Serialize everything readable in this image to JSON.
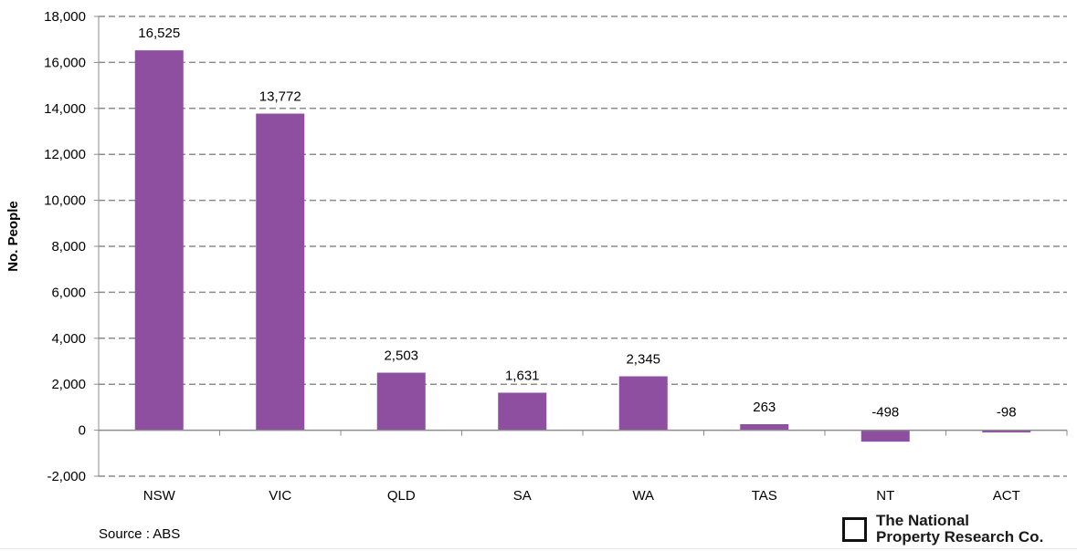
{
  "chart_data": {
    "type": "bar",
    "categories": [
      "NSW",
      "VIC",
      "QLD",
      "SA",
      "WA",
      "TAS",
      "NT",
      "ACT"
    ],
    "values": [
      16525,
      13772,
      2503,
      1631,
      2345,
      263,
      -498,
      -98
    ],
    "data_labels": [
      "16,525",
      "13,772",
      "2,503",
      "1,631",
      "2,345",
      "263",
      "-498",
      "-98"
    ],
    "ylabel": "No. People",
    "ylim": [
      -2000,
      18000
    ],
    "yticks": [
      -2000,
      0,
      2000,
      4000,
      6000,
      8000,
      10000,
      12000,
      14000,
      16000,
      18000
    ],
    "ytick_labels": [
      "-2,000",
      "0",
      "2,000",
      "4,000",
      "6,000",
      "8,000",
      "10,000",
      "12,000",
      "14,000",
      "16,000",
      "18,000"
    ],
    "grid": true,
    "bar_color": "#8E4FA0"
  },
  "footer": {
    "source": "Source : ABS",
    "logo_line1": "The National",
    "logo_line2": "Property Research Co."
  }
}
